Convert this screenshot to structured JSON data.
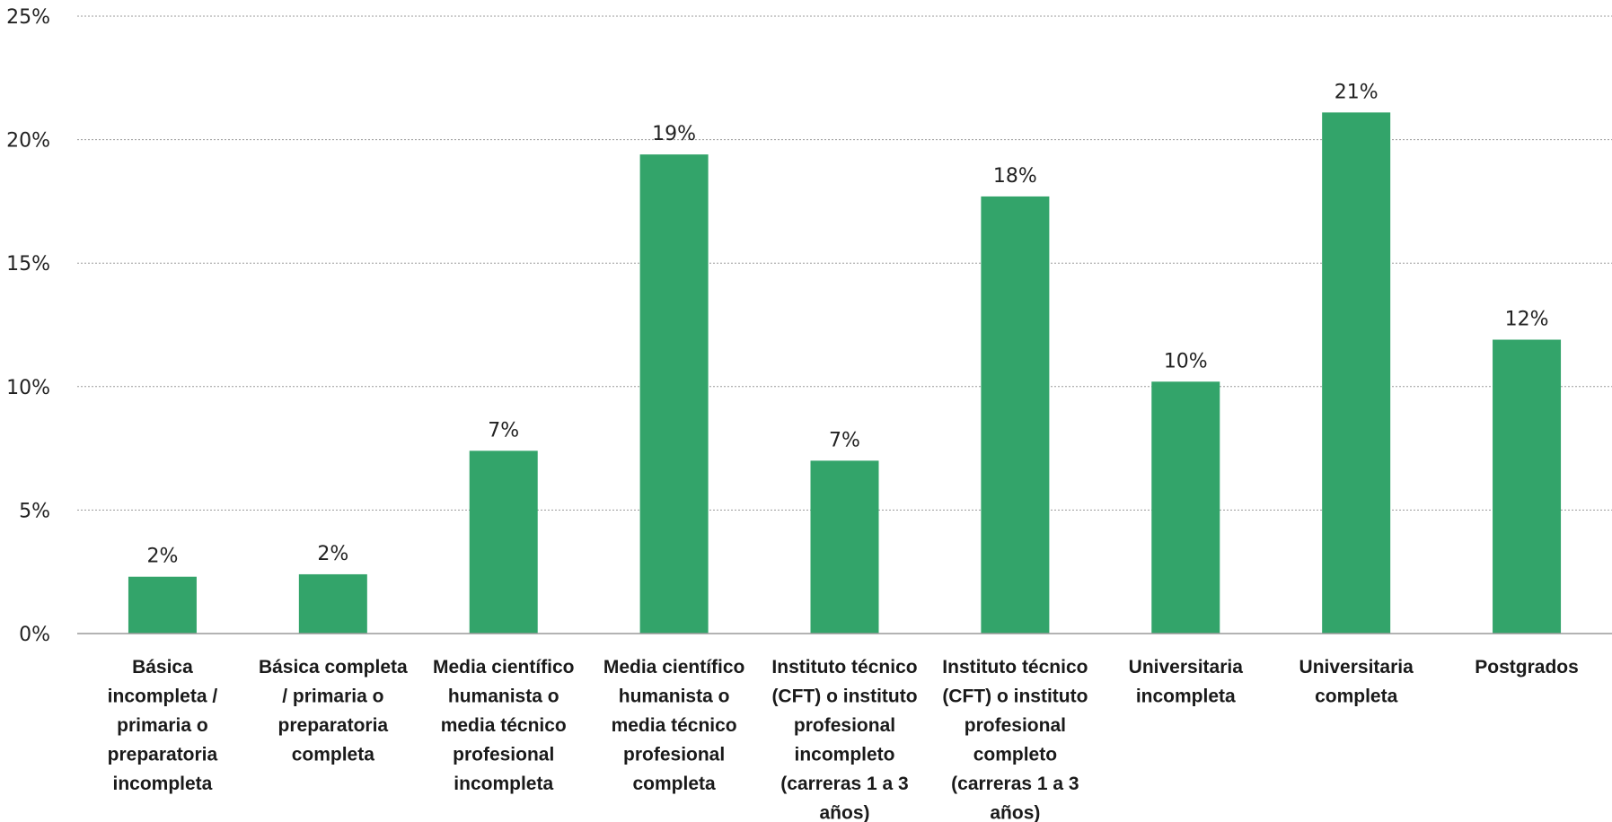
{
  "chart_data": {
    "type": "bar",
    "categories": [
      [
        "Básica",
        "incompleta /",
        "primaria o",
        "preparatoria",
        "incompleta"
      ],
      [
        "Básica completa",
        "/ primaria o",
        "preparatoria",
        "completa"
      ],
      [
        "Media científico",
        "humanista o",
        "media técnico",
        "profesional",
        "incompleta"
      ],
      [
        "Media científico",
        "humanista o",
        "media técnico",
        "profesional",
        "completa"
      ],
      [
        "Instituto técnico",
        "(CFT) o instituto",
        "profesional",
        "incompleto",
        "(carreras 1 a 3",
        "años)"
      ],
      [
        "Instituto técnico",
        "(CFT) o instituto",
        "profesional",
        "completo",
        "(carreras 1 a 3",
        "años)"
      ],
      [
        "Universitaria",
        "incompleta"
      ],
      [
        "Universitaria",
        "completa"
      ],
      [
        "Postgrados"
      ]
    ],
    "values": [
      2.3,
      2.4,
      7.4,
      19.4,
      7.0,
      17.7,
      10.2,
      21.1,
      11.9
    ],
    "data_labels": [
      "2%",
      "2%",
      "7%",
      "19%",
      "7%",
      "18%",
      "10%",
      "21%",
      "12%"
    ],
    "yticks": [
      "0%",
      "5%",
      "10%",
      "15%",
      "20%",
      "25%"
    ],
    "ylim": [
      0,
      25
    ],
    "grid": true,
    "legend": "none",
    "bar_color": "#33a46a"
  }
}
